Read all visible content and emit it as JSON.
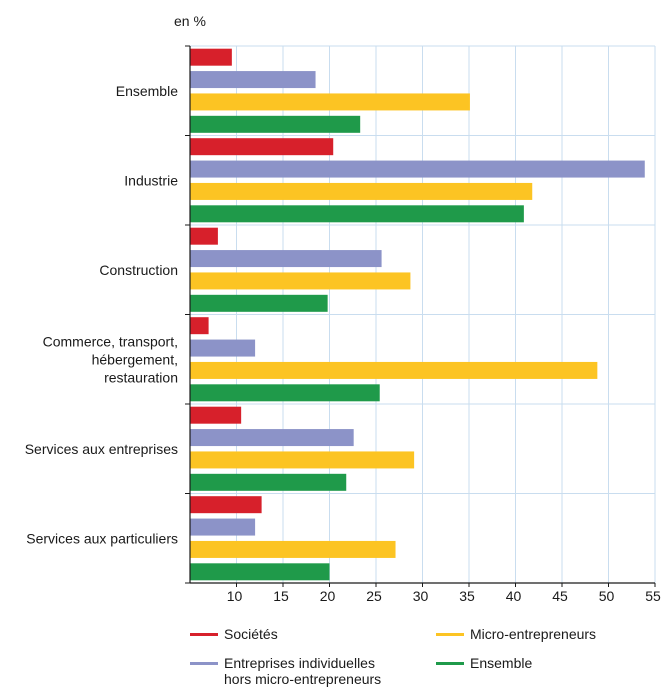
{
  "chart_data": {
    "type": "bar",
    "orientation": "horizontal",
    "unit_label": "en %",
    "categories": [
      [
        "Ensemble"
      ],
      [
        "Industrie"
      ],
      [
        "Construction"
      ],
      [
        "Commerce, transport,",
        "hébergement,",
        "restauration"
      ],
      [
        "Services aux entreprises"
      ],
      [
        "Services aux particuliers"
      ]
    ],
    "series": [
      {
        "name": "Sociétés",
        "color": "#d7202b",
        "values": [
          9.5,
          20.4,
          8.0,
          7.0,
          10.5,
          12.7
        ]
      },
      {
        "name": "Entreprises individuelles hors micro-entrepreneurs",
        "legend_lines": [
          "Entreprises individuelles",
          "hors micro-entrepreneurs"
        ],
        "color": "#8c93c8",
        "values": [
          18.5,
          53.9,
          25.6,
          12.0,
          22.6,
          12.0
        ]
      },
      {
        "name": "Micro-entrepreneurs",
        "color": "#fcc423",
        "values": [
          35.1,
          41.8,
          28.7,
          48.8,
          29.1,
          27.1
        ]
      },
      {
        "name": "Ensemble",
        "color": "#1f9a4a",
        "values": [
          23.3,
          40.9,
          19.8,
          25.4,
          21.8,
          20.0
        ]
      }
    ],
    "xlim": [
      5,
      55
    ],
    "xticks": [
      10,
      15,
      20,
      25,
      30,
      35,
      40,
      45,
      50,
      55
    ],
    "grid": true,
    "legend_position": "bottom"
  }
}
